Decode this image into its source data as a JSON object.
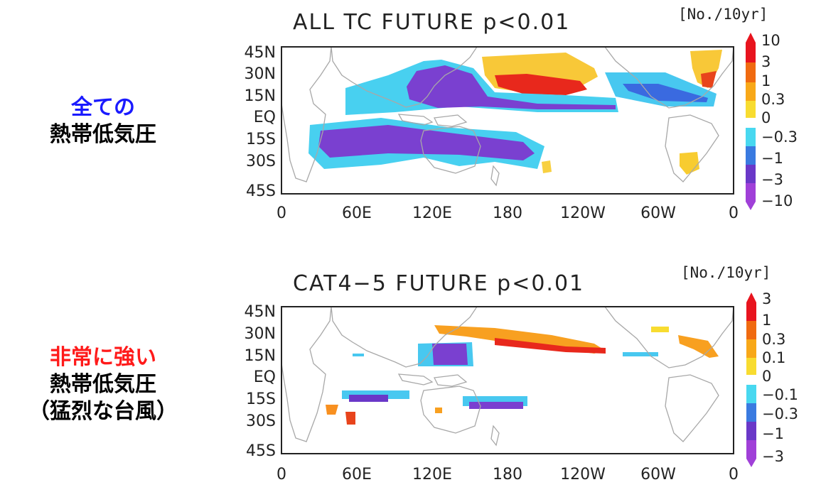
{
  "side_labels": [
    {
      "highlight": "全ての",
      "highlight_color": "#1a1aff",
      "lines": [
        "熱帯低気圧"
      ]
    },
    {
      "highlight": "非常に強い",
      "highlight_color": "#ff1a1a",
      "lines": [
        "熱帯低気圧",
        "（猛烈な台風）"
      ]
    }
  ],
  "x_ticks": [
    "0",
    "60E",
    "120E",
    "180",
    "120W",
    "60W",
    "0"
  ],
  "y_ticks": [
    "45N",
    "30N",
    "15N",
    "EQ",
    "15S",
    "30S",
    "45S"
  ],
  "panels": [
    {
      "title": "ALL TC FUTURE p<0.01",
      "units": "[No./10yr]",
      "colorbar_labels": [
        "10",
        "3",
        "1",
        "0.3",
        "0",
        "−0.3",
        "−1",
        "−3",
        "−10"
      ],
      "colorbar_colors": [
        "#e8141e",
        "#f06a10",
        "#f8a818",
        "#f8dc30",
        "#ffffff",
        "#48d8f0",
        "#3a7ae0",
        "#6a38c8",
        "#a040d8"
      ]
    },
    {
      "title": "CAT4−5 FUTURE p<0.01",
      "units": "[No./10yr]",
      "colorbar_labels": [
        "3",
        "1",
        "0.3",
        "0.1",
        "0",
        "−0.1",
        "−0.3",
        "−1",
        "−3"
      ],
      "colorbar_colors": [
        "#e8141e",
        "#f06a10",
        "#f8a818",
        "#f8dc30",
        "#ffffff",
        "#48d8f0",
        "#3a7ae0",
        "#6a38c8",
        "#a040d8"
      ]
    }
  ]
}
